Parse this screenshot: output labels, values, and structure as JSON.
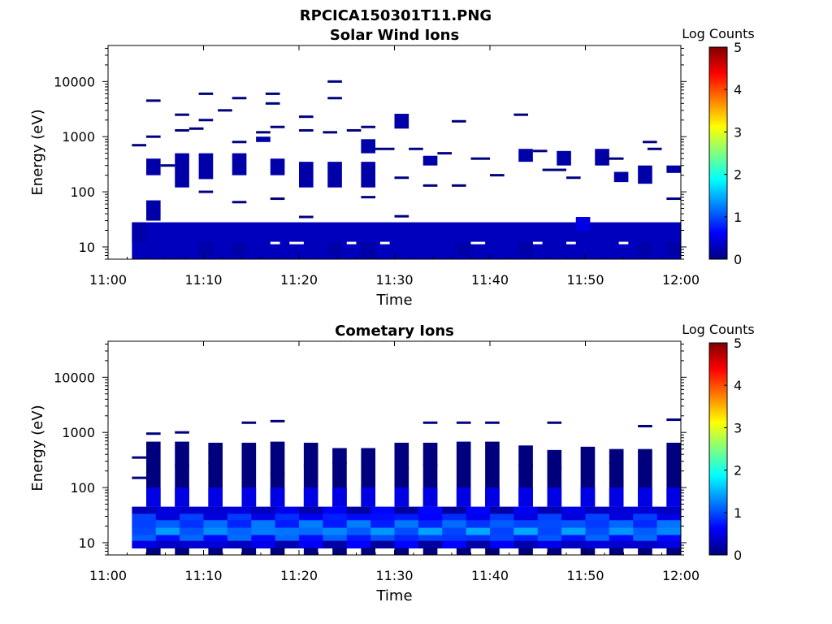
{
  "title": "RPCICA150301T11.PNG",
  "colors": {
    "data": "#00007f",
    "axes": "#000000",
    "background": "#ffffff"
  },
  "colormap": [
    "#00007f",
    "#0000ff",
    "#007fff",
    "#00ffff",
    "#7fff7f",
    "#ffff00",
    "#ff7f00",
    "#ff0000",
    "#7f0000"
  ],
  "chart_data": [
    {
      "type": "heatmap",
      "title": "Solar Wind Ions",
      "xlabel": "Time",
      "ylabel": "Energy (eV)",
      "x_ticks": [
        "11:00",
        "11:10",
        "11:20",
        "11:30",
        "11:40",
        "11:50",
        "12:00"
      ],
      "xlim": [
        "11:00",
        "12:00"
      ],
      "y_scale": "log",
      "y_ticks": [
        "10",
        "100",
        "1000",
        "10000"
      ],
      "ylim": [
        6,
        45000
      ],
      "colorbar": {
        "label": "Log Counts",
        "range": [
          0,
          5
        ],
        "ticks": [
          "0",
          "1",
          "2",
          "3",
          "4",
          "5"
        ]
      },
      "grid": false,
      "dense_band": {
        "energy_range": [
          6,
          28
        ],
        "log_counts": 0.3,
        "time_range": [
          "11:02.5",
          "12:00"
        ]
      },
      "blocks": [
        {
          "t": [
            2.5,
            4
          ],
          "e": [
            12,
            28
          ],
          "v": 0.2
        },
        {
          "t": [
            4,
            5.5
          ],
          "e": [
            30,
            70
          ],
          "v": 0.2
        },
        {
          "t": [
            4,
            5.5
          ],
          "e": [
            200,
            400
          ],
          "v": 0.2
        },
        {
          "t": [
            7,
            8.5
          ],
          "e": [
            120,
            500
          ],
          "v": 0.2
        },
        {
          "t": [
            9.5,
            11
          ],
          "e": [
            7,
            12
          ],
          "v": 0.2
        },
        {
          "t": [
            9.5,
            11
          ],
          "e": [
            170,
            500
          ],
          "v": 0.2
        },
        {
          "t": [
            13,
            14.5
          ],
          "e": [
            200,
            500
          ],
          "v": 0.2
        },
        {
          "t": [
            13,
            14.5
          ],
          "e": [
            7,
            12
          ],
          "v": 0.2
        },
        {
          "t": [
            15.5,
            17
          ],
          "e": [
            800,
            1000
          ],
          "v": 0.2
        },
        {
          "t": [
            17,
            18.5
          ],
          "e": [
            200,
            400
          ],
          "v": 0.2
        },
        {
          "t": [
            20,
            21.5
          ],
          "e": [
            120,
            350
          ],
          "v": 0.2
        },
        {
          "t": [
            23,
            24.5
          ],
          "e": [
            120,
            350
          ],
          "v": 0.2
        },
        {
          "t": [
            23,
            24.5
          ],
          "e": [
            7,
            12
          ],
          "v": 0.2
        },
        {
          "t": [
            26.5,
            28
          ],
          "e": [
            120,
            350
          ],
          "v": 0.2
        },
        {
          "t": [
            26.5,
            28
          ],
          "e": [
            6,
            12
          ],
          "v": 0.2
        },
        {
          "t": [
            26.5,
            28
          ],
          "e": [
            500,
            900
          ],
          "v": 0.2
        },
        {
          "t": [
            30,
            31.5
          ],
          "e": [
            1400,
            2600
          ],
          "v": 0.2
        },
        {
          "t": [
            33,
            34.5
          ],
          "e": [
            300,
            450
          ],
          "v": 0.2
        },
        {
          "t": [
            36.5,
            38
          ],
          "e": [
            7,
            12
          ],
          "v": 0.2
        },
        {
          "t": [
            43,
            44.5
          ],
          "e": [
            7,
            12
          ],
          "v": 0.2
        },
        {
          "t": [
            43,
            44.5
          ],
          "e": [
            350,
            600
          ],
          "v": 0.2
        },
        {
          "t": [
            47,
            48.5
          ],
          "e": [
            300,
            550
          ],
          "v": 0.2
        },
        {
          "t": [
            51,
            52.5
          ],
          "e": [
            300,
            600
          ],
          "v": 0.2
        },
        {
          "t": [
            53,
            54.5
          ],
          "e": [
            150,
            230
          ],
          "v": 0.2
        },
        {
          "t": [
            55.5,
            57
          ],
          "e": [
            140,
            300
          ],
          "v": 0.2
        },
        {
          "t": [
            55.5,
            57
          ],
          "e": [
            7,
            12
          ],
          "v": 0.2
        },
        {
          "t": [
            58.5,
            60
          ],
          "e": [
            7,
            12
          ],
          "v": 0.2
        },
        {
          "t": [
            58.5,
            60
          ],
          "e": [
            220,
            300
          ],
          "v": 0.2
        },
        {
          "t": [
            49,
            50.5
          ],
          "e": [
            20,
            35
          ],
          "v": 0.5
        }
      ],
      "lines": [
        {
          "t": [
            2.5,
            4
          ],
          "e": 700
        },
        {
          "t": [
            4,
            5.5
          ],
          "e": 4500
        },
        {
          "t": [
            4,
            5.5
          ],
          "e": 1000
        },
        {
          "t": [
            5.5,
            7
          ],
          "e": 300
        },
        {
          "t": [
            7,
            8.5
          ],
          "e": 2500
        },
        {
          "t": [
            7,
            8.5
          ],
          "e": 1300
        },
        {
          "t": [
            8.5,
            10
          ],
          "e": 1400
        },
        {
          "t": [
            9.5,
            11
          ],
          "e": 6000
        },
        {
          "t": [
            9.5,
            11
          ],
          "e": 2000
        },
        {
          "t": [
            9.5,
            11
          ],
          "e": 100
        },
        {
          "t": [
            11.5,
            13
          ],
          "e": 3000
        },
        {
          "t": [
            13,
            14.5
          ],
          "e": 5000
        },
        {
          "t": [
            13,
            14.5
          ],
          "e": 800
        },
        {
          "t": [
            13,
            14.5
          ],
          "e": 65
        },
        {
          "t": [
            15.5,
            17
          ],
          "e": 1200
        },
        {
          "t": [
            16.5,
            18
          ],
          "e": 6000
        },
        {
          "t": [
            16.5,
            18
          ],
          "e": 4000
        },
        {
          "t": [
            17,
            18.5
          ],
          "e": 1500
        },
        {
          "t": [
            17,
            18.5
          ],
          "e": 75
        },
        {
          "t": [
            20,
            21.5
          ],
          "e": 2300
        },
        {
          "t": [
            20,
            21.5
          ],
          "e": 1300
        },
        {
          "t": [
            20,
            21.5
          ],
          "e": 35
        },
        {
          "t": [
            22.5,
            24
          ],
          "e": 1200
        },
        {
          "t": [
            23,
            24.5
          ],
          "e": 10000
        },
        {
          "t": [
            23,
            24.5
          ],
          "e": 5000
        },
        {
          "t": [
            25,
            26.5
          ],
          "e": 1300
        },
        {
          "t": [
            26.5,
            28
          ],
          "e": 1500
        },
        {
          "t": [
            26.5,
            28
          ],
          "e": 80
        },
        {
          "t": [
            28,
            30
          ],
          "e": 600
        },
        {
          "t": [
            30,
            31.5
          ],
          "e": 36
        },
        {
          "t": [
            30,
            31.5
          ],
          "e": 180
        },
        {
          "t": [
            31.5,
            33
          ],
          "e": 600
        },
        {
          "t": [
            33,
            34.5
          ],
          "e": 130
        },
        {
          "t": [
            34.5,
            36
          ],
          "e": 500
        },
        {
          "t": [
            36,
            37.5
          ],
          "e": 1900
        },
        {
          "t": [
            36,
            37.5
          ],
          "e": 130
        },
        {
          "t": [
            38,
            40
          ],
          "e": 400
        },
        {
          "t": [
            40,
            41.5
          ],
          "e": 200
        },
        {
          "t": [
            42.5,
            44
          ],
          "e": 2500
        },
        {
          "t": [
            44.5,
            46
          ],
          "e": 550
        },
        {
          "t": [
            45.5,
            48
          ],
          "e": 250
        },
        {
          "t": [
            48,
            49.5
          ],
          "e": 180
        },
        {
          "t": [
            52,
            54
          ],
          "e": 400
        },
        {
          "t": [
            56,
            57.5
          ],
          "e": 800
        },
        {
          "t": [
            56.5,
            58
          ],
          "e": 600
        },
        {
          "t": [
            58.5,
            60
          ],
          "e": 75
        }
      ]
    },
    {
      "type": "heatmap",
      "title": "Cometary Ions",
      "xlabel": "Time",
      "ylabel": "Energy (eV)",
      "x_ticks": [
        "11:00",
        "11:10",
        "11:20",
        "11:30",
        "11:40",
        "11:50",
        "12:00"
      ],
      "xlim": [
        "11:00",
        "12:00"
      ],
      "y_scale": "log",
      "y_ticks": [
        "10",
        "100",
        "1000",
        "10000"
      ],
      "ylim": [
        6,
        45000
      ],
      "colorbar": {
        "label": "Log Counts",
        "range": [
          0,
          5
        ],
        "ticks": [
          "0",
          "1",
          "2",
          "3",
          "4",
          "5"
        ]
      },
      "grid": false,
      "columns": [
        {
          "t": [
            4,
            5.5
          ],
          "e_top": 680
        },
        {
          "t": [
            7,
            8.5
          ],
          "e_top": 680
        },
        {
          "t": [
            10.5,
            12
          ],
          "e_top": 650
        },
        {
          "t": [
            14,
            15.5
          ],
          "e_top": 650
        },
        {
          "t": [
            17,
            18.5
          ],
          "e_top": 680
        },
        {
          "t": [
            20.5,
            22
          ],
          "e_top": 650
        },
        {
          "t": [
            23.5,
            25
          ],
          "e_top": 520
        },
        {
          "t": [
            26.5,
            28
          ],
          "e_top": 520
        },
        {
          "t": [
            30,
            31.5
          ],
          "e_top": 650
        },
        {
          "t": [
            33,
            34.5
          ],
          "e_top": 650
        },
        {
          "t": [
            36.5,
            38
          ],
          "e_top": 680
        },
        {
          "t": [
            39.5,
            41
          ],
          "e_top": 680
        },
        {
          "t": [
            43,
            44.5
          ],
          "e_top": 580
        },
        {
          "t": [
            46,
            47.5
          ],
          "e_top": 480
        },
        {
          "t": [
            49.5,
            51
          ],
          "e_top": 550
        },
        {
          "t": [
            52.5,
            54
          ],
          "e_top": 500
        },
        {
          "t": [
            55.5,
            57
          ],
          "e_top": 500
        },
        {
          "t": [
            58.5,
            60
          ],
          "e_top": 650
        }
      ],
      "dense_band": {
        "time_range": [
          "11:02.5",
          "12:00"
        ],
        "rows": [
          {
            "e": [
              8,
              11
            ],
            "v": 0.3
          },
          {
            "e": [
              11,
              14
            ],
            "v": 0.8
          },
          {
            "e": [
              14,
              19
            ],
            "v": 1.1
          },
          {
            "e": [
              19,
              26
            ],
            "v": 0.9
          },
          {
            "e": [
              26,
              34
            ],
            "v": 0.6
          },
          {
            "e": [
              34,
              45
            ],
            "v": 0.3
          }
        ]
      },
      "lines": [
        {
          "t": [
            2.5,
            4
          ],
          "e": 350
        },
        {
          "t": [
            2.5,
            4
          ],
          "e": 150
        },
        {
          "t": [
            4,
            5.5
          ],
          "e": 950
        },
        {
          "t": [
            7,
            8.5
          ],
          "e": 1000
        },
        {
          "t": [
            7,
            8.5
          ],
          "e": 250
        },
        {
          "t": [
            10.5,
            12
          ],
          "e": 280
        },
        {
          "t": [
            14,
            15.5
          ],
          "e": 1500
        },
        {
          "t": [
            17,
            18.5
          ],
          "e": 1600
        },
        {
          "t": [
            17,
            18.5
          ],
          "e": 180
        },
        {
          "t": [
            20.5,
            22
          ],
          "e": 250
        },
        {
          "t": [
            23.5,
            25
          ],
          "e": 280
        },
        {
          "t": [
            30,
            31.5
          ],
          "e": 230
        },
        {
          "t": [
            33,
            34.5
          ],
          "e": 1500
        },
        {
          "t": [
            33,
            34.5
          ],
          "e": 260
        },
        {
          "t": [
            36.5,
            38
          ],
          "e": 1500
        },
        {
          "t": [
            39.5,
            41
          ],
          "e": 1500
        },
        {
          "t": [
            43,
            44.5
          ],
          "e": 250
        },
        {
          "t": [
            46,
            47.5
          ],
          "e": 1500
        },
        {
          "t": [
            46,
            47.5
          ],
          "e": 220
        },
        {
          "t": [
            52.5,
            54
          ],
          "e": 280
        },
        {
          "t": [
            55.5,
            57
          ],
          "e": 1300
        },
        {
          "t": [
            58.5,
            60
          ],
          "e": 1700
        }
      ]
    }
  ]
}
